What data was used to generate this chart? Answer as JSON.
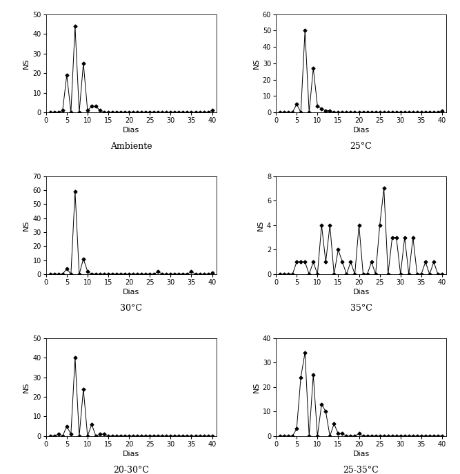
{
  "panels": [
    {
      "label": "Ambiente",
      "ylim": [
        0,
        50
      ],
      "yticks": [
        0,
        10,
        20,
        30,
        40,
        50
      ],
      "data": {
        "1": 0,
        "2": 0,
        "3": 0,
        "4": 1,
        "5": 19,
        "6": 0,
        "7": 44,
        "8": 0,
        "9": 25,
        "10": 1,
        "11": 3,
        "12": 3,
        "13": 1,
        "14": 0,
        "15": 0,
        "16": 0,
        "17": 0,
        "18": 0,
        "19": 0,
        "20": 0,
        "21": 0,
        "22": 0,
        "23": 0,
        "24": 0,
        "25": 0,
        "26": 0,
        "27": 0,
        "28": 0,
        "29": 0,
        "30": 0,
        "31": 0,
        "32": 0,
        "33": 0,
        "34": 0,
        "35": 0,
        "36": 0,
        "37": 0,
        "38": 0,
        "39": 0,
        "40": 1
      }
    },
    {
      "label": "25°C",
      "ylim": [
        0,
        60
      ],
      "yticks": [
        0,
        10,
        20,
        30,
        40,
        50,
        60
      ],
      "data": {
        "1": 0,
        "2": 0,
        "3": 0,
        "4": 0,
        "5": 5,
        "6": 0,
        "7": 50,
        "8": 0,
        "9": 27,
        "10": 4,
        "11": 2,
        "12": 1,
        "13": 1,
        "14": 0,
        "15": 0,
        "16": 0,
        "17": 0,
        "18": 0,
        "19": 0,
        "20": 0,
        "21": 0,
        "22": 0,
        "23": 0,
        "24": 0,
        "25": 0,
        "26": 0,
        "27": 0,
        "28": 0,
        "29": 0,
        "30": 0,
        "31": 0,
        "32": 0,
        "33": 0,
        "34": 0,
        "35": 0,
        "36": 0,
        "37": 0,
        "38": 0,
        "39": 0,
        "40": 1
      }
    },
    {
      "label": "30°C",
      "ylim": [
        0,
        70
      ],
      "yticks": [
        0,
        10,
        20,
        30,
        40,
        50,
        60,
        70
      ],
      "data": {
        "1": 0,
        "2": 0,
        "3": 0,
        "4": 0,
        "5": 4,
        "6": 0,
        "7": 59,
        "8": 0,
        "9": 11,
        "10": 2,
        "11": 0,
        "12": 0,
        "13": 0,
        "14": 0,
        "15": 0,
        "16": 0,
        "17": 0,
        "18": 0,
        "19": 0,
        "20": 0,
        "21": 0,
        "22": 0,
        "23": 0,
        "24": 0,
        "25": 0,
        "26": 0,
        "27": 2,
        "28": 0,
        "29": 0,
        "30": 0,
        "31": 0,
        "32": 0,
        "33": 0,
        "34": 0,
        "35": 2,
        "36": 0,
        "37": 0,
        "38": 0,
        "39": 0,
        "40": 1
      }
    },
    {
      "label": "35°C",
      "ylim": [
        0,
        8
      ],
      "yticks": [
        0,
        2,
        4,
        6,
        8
      ],
      "data": {
        "1": 0,
        "2": 0,
        "3": 0,
        "4": 0,
        "5": 1,
        "6": 1,
        "7": 1,
        "8": 0,
        "9": 1,
        "10": 0,
        "11": 4,
        "12": 1,
        "13": 4,
        "14": 0,
        "15": 2,
        "16": 1,
        "17": 0,
        "18": 1,
        "19": 0,
        "20": 4,
        "21": 0,
        "22": 0,
        "23": 1,
        "24": 0,
        "25": 4,
        "26": 7,
        "27": 0,
        "28": 3,
        "29": 3,
        "30": 0,
        "31": 3,
        "32": 0,
        "33": 3,
        "34": 0,
        "35": 0,
        "36": 1,
        "37": 0,
        "38": 1,
        "39": 0,
        "40": 0
      }
    },
    {
      "label": "20-30°C",
      "ylim": [
        0,
        50
      ],
      "yticks": [
        0,
        10,
        20,
        30,
        40,
        50
      ],
      "data": {
        "1": 0,
        "2": 0,
        "3": 1,
        "4": 0,
        "5": 5,
        "6": 1,
        "7": 40,
        "8": 0,
        "9": 24,
        "10": 0,
        "11": 6,
        "12": 0,
        "13": 1,
        "14": 1,
        "15": 0,
        "16": 0,
        "17": 0,
        "18": 0,
        "19": 0,
        "20": 0,
        "21": 0,
        "22": 0,
        "23": 0,
        "24": 0,
        "25": 0,
        "26": 0,
        "27": 0,
        "28": 0,
        "29": 0,
        "30": 0,
        "31": 0,
        "32": 0,
        "33": 0,
        "34": 0,
        "35": 0,
        "36": 0,
        "37": 0,
        "38": 0,
        "39": 0,
        "40": 0
      }
    },
    {
      "label": "25-35°C",
      "ylim": [
        0,
        40
      ],
      "yticks": [
        0,
        10,
        20,
        30,
        40
      ],
      "data": {
        "1": 0,
        "2": 0,
        "3": 0,
        "4": 0,
        "5": 3,
        "6": 24,
        "7": 34,
        "8": 0,
        "9": 25,
        "10": 0,
        "11": 13,
        "12": 10,
        "13": 0,
        "14": 5,
        "15": 1,
        "16": 1,
        "17": 0,
        "18": 0,
        "19": 0,
        "20": 1,
        "21": 0,
        "22": 0,
        "23": 0,
        "24": 0,
        "25": 0,
        "26": 0,
        "27": 0,
        "28": 0,
        "29": 0,
        "30": 0,
        "31": 0,
        "32": 0,
        "33": 0,
        "34": 0,
        "35": 0,
        "36": 0,
        "37": 0,
        "38": 0,
        "39": 0,
        "40": 0
      }
    }
  ],
  "xlabel": "Dias",
  "ylabel": "NS",
  "xlim": [
    0,
    41
  ],
  "xticks": [
    0,
    5,
    10,
    15,
    20,
    25,
    30,
    35,
    40
  ],
  "line_color": "black",
  "marker": "D",
  "marker_size": 2.5,
  "marker_facecolor": "black",
  "fontsize_label": 8,
  "fontsize_tick": 7,
  "fontsize_caption": 9
}
